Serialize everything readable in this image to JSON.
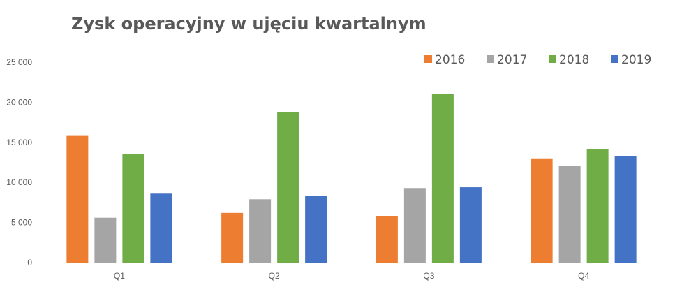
{
  "chart_data": {
    "type": "bar",
    "title": "Zysk operacyjny w ujęciu kwartalnym",
    "xlabel": "",
    "ylabel": "",
    "categories": [
      "Q1",
      "Q2",
      "Q3",
      "Q4"
    ],
    "series": [
      {
        "name": "2016",
        "color": "#ED7D31",
        "values": [
          15800,
          6200,
          5800,
          13000
        ]
      },
      {
        "name": "2017",
        "color": "#A5A5A5",
        "values": [
          5600,
          7900,
          9300,
          12100
        ]
      },
      {
        "name": "2018",
        "color": "#70AD47",
        "values": [
          13500,
          18800,
          21000,
          14200
        ]
      },
      {
        "name": "2019",
        "color": "#4472C4",
        "values": [
          8600,
          8300,
          9400,
          13300
        ]
      }
    ],
    "ylim": [
      0,
      25000
    ],
    "yticks": [
      0,
      5000,
      10000,
      15000,
      20000,
      25000
    ],
    "ytick_labels": [
      "0",
      "5 000",
      "10 000",
      "15 000",
      "20 000",
      "25 000"
    ],
    "grid": false,
    "legend": "top-right"
  }
}
